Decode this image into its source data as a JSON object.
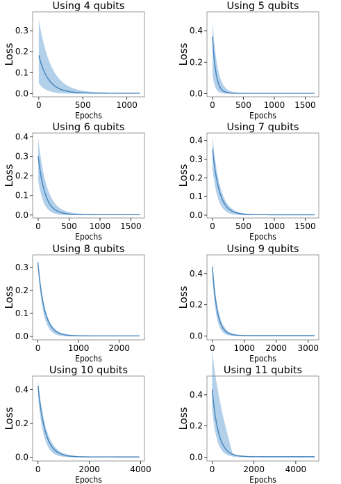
{
  "chart_data": [
    {
      "type": "line",
      "title": "Using 4 qubits",
      "xlabel": "Epochs",
      "ylabel": "Loss",
      "xlim": [
        -70,
        1200
      ],
      "ylim": [
        -0.015,
        0.39
      ],
      "xticks": [
        0,
        500,
        1000
      ],
      "yticks": [
        0.0,
        0.1,
        0.2,
        0.3
      ],
      "ytick_labels": [
        "0.0",
        "0.1",
        "0.2",
        "0.3"
      ],
      "max_epoch": 1150,
      "loss_start": 0.18,
      "decay_epochs": 110,
      "band_upper_start": 0.35,
      "band_lower_start": 0.05,
      "band_decay_epochs": 140,
      "series": [
        {
          "values_note": "mean loss with shaded spread"
        }
      ]
    },
    {
      "type": "line",
      "title": "Using 5 qubits",
      "xlabel": "Epochs",
      "ylabel": "Loss",
      "xlim": [
        -90,
        1720
      ],
      "ylim": [
        -0.02,
        0.52
      ],
      "xticks": [
        0,
        500,
        1000,
        1500
      ],
      "yticks": [
        0.0,
        0.2,
        0.4
      ],
      "ytick_labels": [
        "0.0",
        "0.2",
        "0.4"
      ],
      "max_epoch": 1650,
      "loss_start": 0.36,
      "decay_epochs": 55,
      "band_upper_start": 0.46,
      "band_lower_start": 0.12,
      "band_decay_epochs": 80
    },
    {
      "type": "line",
      "title": "Using 6 qubits",
      "xlabel": "Epochs",
      "ylabel": "Loss",
      "xlim": [
        -90,
        1720
      ],
      "ylim": [
        -0.015,
        0.42
      ],
      "xticks": [
        0,
        500,
        1000,
        1500
      ],
      "yticks": [
        0.0,
        0.1,
        0.2,
        0.3,
        0.4
      ],
      "ytick_labels": [
        "0.0",
        "0.1",
        "0.2",
        "0.3",
        "0.4"
      ],
      "max_epoch": 1650,
      "loss_start": 0.3,
      "decay_epochs": 110,
      "band_upper_start": 0.39,
      "band_lower_start": 0.18,
      "band_decay_epochs": 140
    },
    {
      "type": "line",
      "title": "Using 7 qubits",
      "xlabel": "Epochs",
      "ylabel": "Loss",
      "xlim": [
        -90,
        1720
      ],
      "ylim": [
        -0.015,
        0.44
      ],
      "xticks": [
        0,
        500,
        1000,
        1500
      ],
      "yticks": [
        0.0,
        0.1,
        0.2,
        0.3,
        0.4
      ],
      "ytick_labels": [
        "0.0",
        "0.1",
        "0.2",
        "0.3",
        "0.4"
      ],
      "max_epoch": 1650,
      "loss_start": 0.35,
      "decay_epochs": 110,
      "band_upper_start": 0.42,
      "band_lower_start": 0.25,
      "band_decay_epochs": 120
    },
    {
      "type": "line",
      "title": "Using 8 qubits",
      "xlabel": "Epochs",
      "ylabel": "Loss",
      "xlim": [
        -130,
        2620
      ],
      "ylim": [
        -0.015,
        0.355
      ],
      "xticks": [
        0,
        1000,
        2000
      ],
      "yticks": [
        0.0,
        0.1,
        0.2,
        0.3
      ],
      "ytick_labels": [
        "0.0",
        "0.1",
        "0.2",
        "0.3"
      ],
      "max_epoch": 2500,
      "loss_start": 0.32,
      "decay_epochs": 160,
      "band_upper_start": 0.33,
      "band_lower_start": 0.3,
      "band_decay_epochs": 170
    },
    {
      "type": "line",
      "title": "Using 9 qubits",
      "xlabel": "Epochs",
      "ylabel": "Loss",
      "xlim": [
        -170,
        3330
      ],
      "ylim": [
        -0.025,
        0.52
      ],
      "xticks": [
        0,
        1000,
        2000,
        3000
      ],
      "yticks": [
        0.0,
        0.2,
        0.4
      ],
      "ytick_labels": [
        "0.0",
        "0.2",
        "0.4"
      ],
      "max_epoch": 3200,
      "loss_start": 0.44,
      "decay_epochs": 150,
      "band_upper_start": 0.48,
      "band_lower_start": 0.38,
      "band_decay_epochs": 170
    },
    {
      "type": "line",
      "title": "Using 10 qubits",
      "xlabel": "Epochs",
      "ylabel": "Loss",
      "xlim": [
        -210,
        4150
      ],
      "ylim": [
        -0.022,
        0.48
      ],
      "xticks": [
        0,
        2000,
        4000
      ],
      "yticks": [
        0.0,
        0.2,
        0.4
      ],
      "ytick_labels": [
        "0.0",
        "0.2",
        "0.4"
      ],
      "max_epoch": 3950,
      "loss_start": 0.42,
      "decay_epochs": 280,
      "band_upper_start": 0.45,
      "band_lower_start": 0.36,
      "band_decay_epochs": 320
    },
    {
      "type": "line",
      "title": "Using 11 qubits",
      "xlabel": "Epochs",
      "ylabel": "Loss",
      "xlim": [
        -250,
        5100
      ],
      "ylim": [
        -0.025,
        0.52
      ],
      "xticks": [
        0,
        2000,
        4000
      ],
      "yticks": [
        0.0,
        0.2,
        0.4
      ],
      "ytick_labels": [
        "0.0",
        "0.2",
        "0.4"
      ],
      "max_epoch": 4900,
      "loss_start": 0.43,
      "decay_epochs": 300,
      "band_upper_start": 0.46,
      "band_lower_start": 0.3,
      "band_decay_epochs": 420,
      "band_upper_shape": "linear_to_zero",
      "band_upper_end_epoch": 1000
    },
    {
      "colors": {
        "band": "#a6c8e6",
        "line": "#1f5f9a",
        "line_core": "#5aa0d8",
        "axis": "#000000"
      }
    }
  ]
}
